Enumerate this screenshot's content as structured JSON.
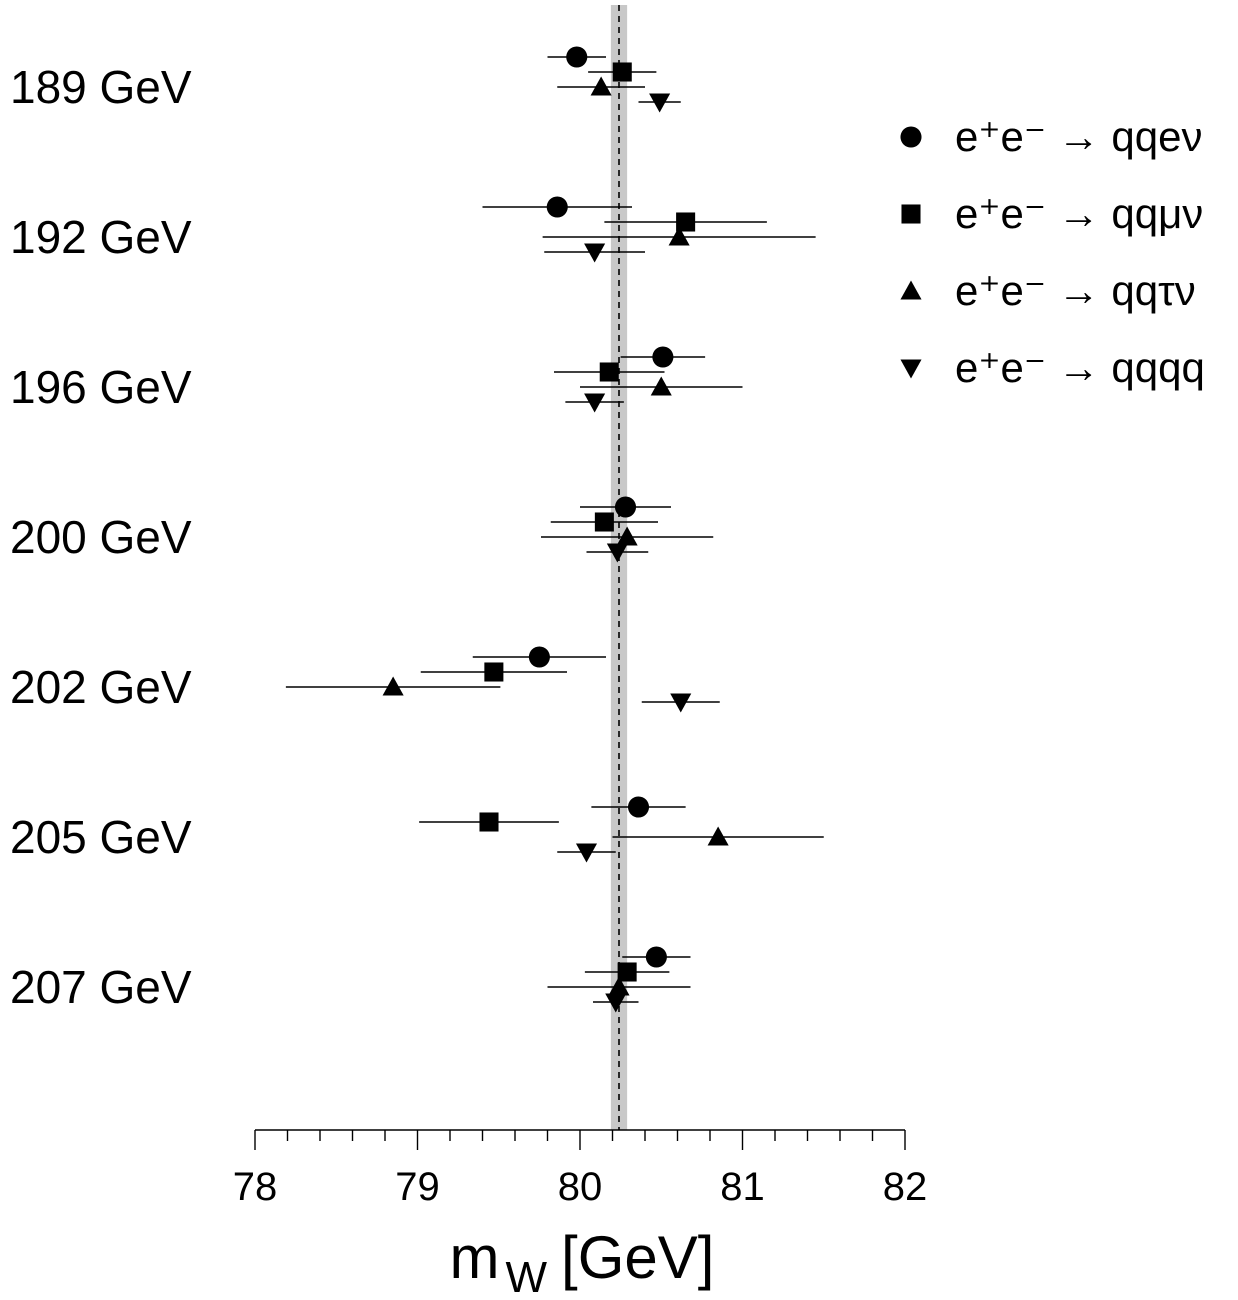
{
  "chart_data": {
    "type": "scatter",
    "title": "",
    "xlabel_main": "m",
    "xlabel_sub": "W",
    "xlabel_unit": "[GeV]",
    "ylabel": "",
    "xlim": [
      78,
      82
    ],
    "x_ticks": [
      78,
      79,
      80,
      81,
      82
    ],
    "x_minor_step": 0.2,
    "grid": false,
    "legend_position": "top-right",
    "categories": [
      "189 GeV",
      "192 GeV",
      "196 GeV",
      "200 GeV",
      "202 GeV",
      "205 GeV",
      "207 GeV"
    ],
    "combined": {
      "value": 80.24,
      "band": [
        80.19,
        80.29
      ],
      "line_style": "dashed"
    },
    "series": [
      {
        "name": "e⁺e⁻ → qqeν",
        "marker": "circle",
        "values": [
          79.98,
          79.86,
          80.51,
          80.28,
          79.75,
          80.36,
          80.47
        ],
        "errors": [
          0.18,
          0.46,
          0.26,
          0.28,
          0.41,
          0.29,
          0.21
        ]
      },
      {
        "name": "e⁺e⁻ → qqμν",
        "marker": "square",
        "values": [
          80.26,
          80.65,
          80.18,
          80.15,
          79.47,
          79.44,
          80.29
        ],
        "errors": [
          0.21,
          0.5,
          0.34,
          0.33,
          0.45,
          0.43,
          0.26
        ]
      },
      {
        "name": "e⁺e⁻ → qqτν",
        "marker": "triangle-up",
        "values": [
          80.13,
          80.61,
          80.5,
          80.29,
          78.85,
          80.85,
          80.24
        ],
        "errors": [
          0.27,
          0.84,
          0.5,
          0.53,
          0.66,
          0.65,
          0.44
        ]
      },
      {
        "name": "e⁺e⁻ → qqqq",
        "marker": "triangle-down",
        "values": [
          80.49,
          80.09,
          80.09,
          80.23,
          80.62,
          80.04,
          80.22
        ],
        "errors": [
          0.13,
          0.31,
          0.18,
          0.19,
          0.24,
          0.18,
          0.14
        ]
      }
    ]
  }
}
